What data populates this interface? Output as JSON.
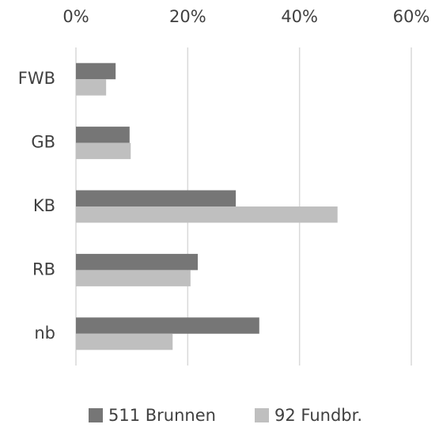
{
  "chart_data": {
    "type": "bar",
    "orientation": "horizontal",
    "categories": [
      "FWB",
      "GB",
      "KB",
      "RB",
      "nb"
    ],
    "series": [
      {
        "name": "511 Brunnen",
        "color": "#767676",
        "values": [
          7.1,
          9.6,
          28.6,
          21.8,
          32.8
        ]
      },
      {
        "name": "92 Fundbr.",
        "color": "#bfbfbf",
        "values": [
          5.4,
          9.8,
          46.8,
          20.5,
          17.3
        ]
      }
    ],
    "xlim": [
      0,
      60
    ],
    "xticks": [
      {
        "value": 0,
        "label": "0%"
      },
      {
        "value": 20,
        "label": "20%"
      },
      {
        "value": 40,
        "label": "40%"
      },
      {
        "value": 60,
        "label": "60%"
      }
    ],
    "grid": true,
    "legend": "bottom"
  }
}
